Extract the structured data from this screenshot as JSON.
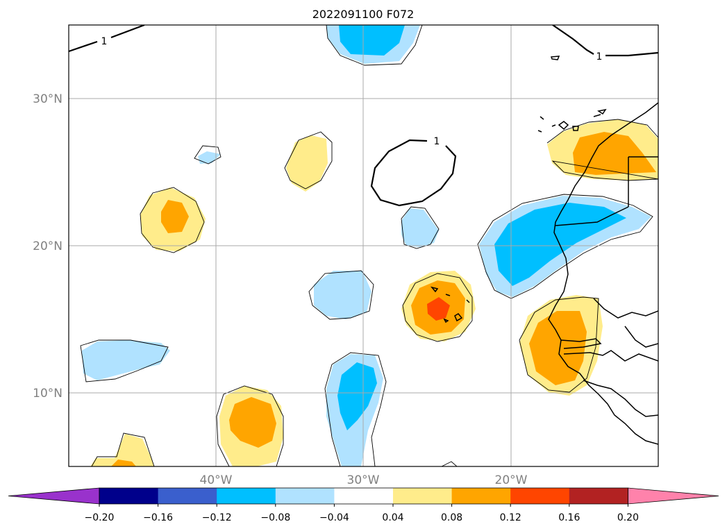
{
  "title": "2022091100 F072",
  "map": {
    "lon_range": [
      -50,
      -10
    ],
    "lat_range": [
      5,
      35
    ],
    "lat_labels": [
      "30°N",
      "20°N",
      "10°N"
    ],
    "lon_labels": [
      "40°W",
      "30°W",
      "20°W"
    ],
    "contour_label": "1",
    "grid": true
  },
  "colorbar": {
    "ticks": [
      "−0.20",
      "−0.16",
      "−0.12",
      "−0.08",
      "−0.04",
      "0.04",
      "0.08",
      "0.12",
      "0.16",
      "0.20"
    ],
    "colors": [
      "#9932cc",
      "#00008b",
      "#3a5fcd",
      "#00bfff",
      "#b0e2ff",
      "#ffffff",
      "#ffec8b",
      "#ffa500",
      "#ff4500",
      "#b22222",
      "#ff82ab"
    ],
    "extend": "both"
  },
  "fill_colors": {
    "light_blue": "#b0e2ff",
    "blue": "#00bfff",
    "light_yellow": "#ffec8b",
    "orange": "#ffa500",
    "red_orange": "#ff4500"
  }
}
